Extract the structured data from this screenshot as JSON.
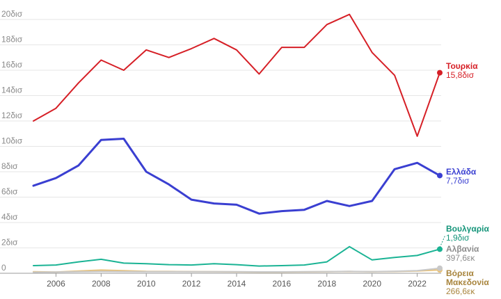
{
  "chart_data": {
    "type": "line",
    "x": [
      2005,
      2006,
      2007,
      2008,
      2009,
      2010,
      2011,
      2012,
      2013,
      2014,
      2015,
      2016,
      2017,
      2018,
      2019,
      2020,
      2021,
      2022,
      2023
    ],
    "ylim": [
      0,
      20.6
    ],
    "yticks": [
      0,
      2,
      4,
      6,
      8,
      10,
      12,
      14,
      16,
      18,
      20
    ],
    "ytick_labels": [
      "0",
      "2δισ",
      "4δισ",
      "6δισ",
      "8δισ",
      "10δισ",
      "12δισ",
      "14δισ",
      "16δισ",
      "18δισ",
      "20δισ"
    ],
    "xticks": [
      2006,
      2008,
      2010,
      2012,
      2014,
      2016,
      2018,
      2020,
      2022
    ],
    "xtick_labels": [
      "2006",
      "2008",
      "2010",
      "2012",
      "2014",
      "2016",
      "2018",
      "2020",
      "2022"
    ],
    "grid": true,
    "series": [
      {
        "name": "Τουρκία",
        "value_label": "15,8δισ",
        "color": "#d61f26",
        "values": [
          12.0,
          13.0,
          15.0,
          16.8,
          16.0,
          17.6,
          17.0,
          17.7,
          18.5,
          17.6,
          15.7,
          17.8,
          17.8,
          19.6,
          20.4,
          17.4,
          15.6,
          10.8,
          15.8
        ]
      },
      {
        "name": "Ελλάδα",
        "value_label": "7,7δισ",
        "color": "#3a3fd1",
        "values": [
          6.9,
          7.5,
          8.5,
          10.5,
          10.6,
          8.0,
          7.0,
          5.8,
          5.5,
          5.4,
          4.7,
          4.9,
          5.0,
          5.7,
          5.3,
          5.7,
          8.2,
          8.7,
          7.7
        ]
      },
      {
        "name": "Βουλγαρία",
        "value_label": "1,9δισ",
        "color": "#1ab394",
        "values": [
          0.6,
          0.65,
          0.9,
          1.1,
          0.8,
          0.75,
          0.68,
          0.65,
          0.75,
          0.68,
          0.57,
          0.6,
          0.65,
          0.9,
          2.1,
          1.05,
          1.25,
          1.4,
          1.9
        ]
      },
      {
        "name": "Αλβανία",
        "value_label": "397,6εκ",
        "color": "#c8c8c8",
        "values": [
          0.08,
          0.1,
          0.12,
          0.14,
          0.13,
          0.12,
          0.12,
          0.12,
          0.12,
          0.12,
          0.11,
          0.11,
          0.12,
          0.13,
          0.15,
          0.13,
          0.16,
          0.2,
          0.3976
        ]
      },
      {
        "name": "Βόρεια Μακεδονία",
        "value_label": "266,6εκ",
        "color": "#e8c27a",
        "values": [
          0.12,
          0.1,
          0.18,
          0.25,
          0.2,
          0.15,
          0.14,
          0.13,
          0.12,
          0.11,
          0.1,
          0.1,
          0.11,
          0.12,
          0.14,
          0.12,
          0.14,
          0.18,
          0.2666
        ]
      }
    ],
    "end_labels": [
      {
        "series": 0,
        "name_lines": [
          "Τουρκία"
        ],
        "value": "15,8δισ",
        "name_color": "#d61f26",
        "value_color": "#d61f26"
      },
      {
        "series": 1,
        "name_lines": [
          "Ελλάδα"
        ],
        "value": "7,7δισ",
        "name_color": "#3a3fd1",
        "value_color": "#3a3fd1"
      },
      {
        "series": 2,
        "name_lines": [
          "Βουλγαρία"
        ],
        "value": "1,9δισ",
        "name_color": "#15957a",
        "value_color": "#15957a"
      },
      {
        "series": 3,
        "name_lines": [
          "Αλβανία"
        ],
        "value": "397,6εκ",
        "name_color": "#8c8c8c",
        "value_color": "#8c8c8c"
      },
      {
        "series": 4,
        "name_lines": [
          "Βόρεια",
          "Μακεδονία"
        ],
        "value": "266,6εκ",
        "name_color": "#a8843c",
        "value_color": "#a8843c"
      }
    ]
  }
}
